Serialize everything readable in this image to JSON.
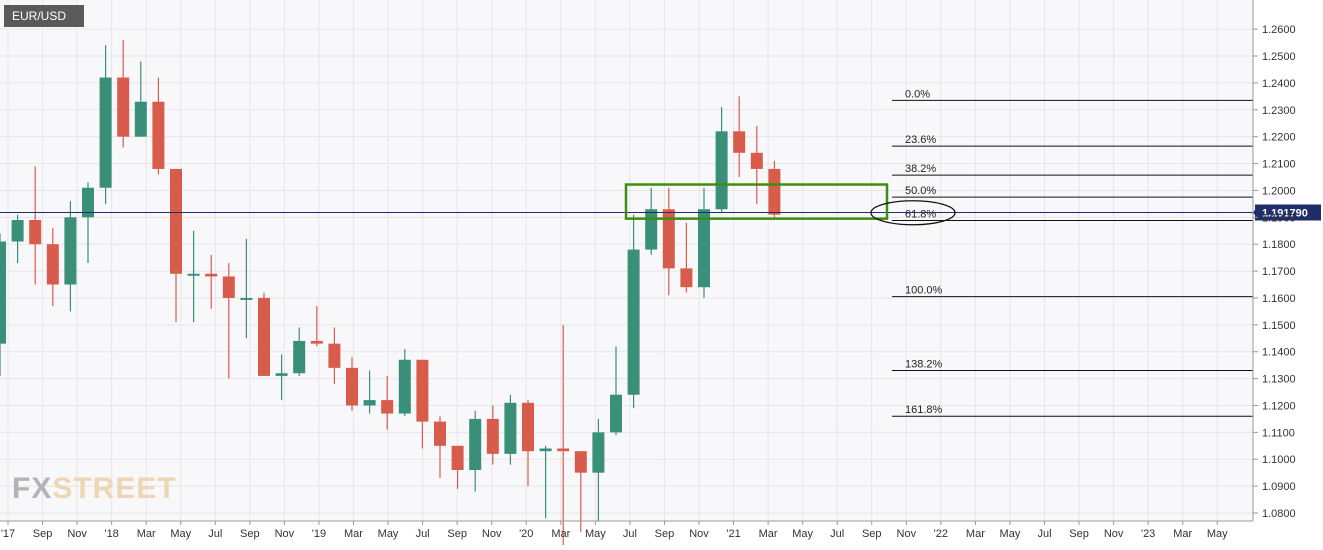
{
  "chart_data": {
    "type": "candlestick",
    "symbol": "EUR/USD",
    "timeframe": "monthly",
    "current_price": "1.191790",
    "ylim": [
      1.078,
      1.2635
    ],
    "y_ticks": [
      "1.2600",
      "1.2500",
      "1.2400",
      "1.2300",
      "1.2200",
      "1.2100",
      "1.2000",
      "1.1900",
      "1.1800",
      "1.1700",
      "1.1600",
      "1.1500",
      "1.1400",
      "1.1300",
      "1.1200",
      "1.1100",
      "1.1000",
      "1.0900",
      "1.0800"
    ],
    "x_ticks": [
      "'17",
      "Sep",
      "Nov",
      "'18",
      "Mar",
      "May",
      "Jul",
      "Sep",
      "Nov",
      "'19",
      "Mar",
      "May",
      "Jul",
      "Sep",
      "Nov",
      "'20",
      "Mar",
      "May",
      "Jul",
      "Sep",
      "Nov",
      "'21",
      "Mar",
      "May",
      "Jul",
      "Sep",
      "Nov",
      "'22",
      "Mar",
      "May",
      "Jul",
      "Sep",
      "Nov",
      "'23",
      "Mar",
      "May"
    ],
    "candles": [
      {
        "o": 1.143,
        "h": 1.184,
        "l": 1.131,
        "c": 1.181
      },
      {
        "o": 1.181,
        "h": 1.191,
        "l": 1.173,
        "c": 1.189
      },
      {
        "o": 1.189,
        "h": 1.209,
        "l": 1.165,
        "c": 1.18
      },
      {
        "o": 1.18,
        "h": 1.186,
        "l": 1.157,
        "c": 1.165
      },
      {
        "o": 1.165,
        "h": 1.196,
        "l": 1.155,
        "c": 1.19
      },
      {
        "o": 1.19,
        "h": 1.203,
        "l": 1.173,
        "c": 1.201
      },
      {
        "o": 1.201,
        "h": 1.254,
        "l": 1.195,
        "c": 1.242
      },
      {
        "o": 1.242,
        "h": 1.256,
        "l": 1.216,
        "c": 1.22
      },
      {
        "o": 1.22,
        "h": 1.248,
        "l": 1.22,
        "c": 1.233
      },
      {
        "o": 1.233,
        "h": 1.242,
        "l": 1.206,
        "c": 1.208
      },
      {
        "o": 1.208,
        "h": 1.208,
        "l": 1.151,
        "c": 1.169
      },
      {
        "o": 1.169,
        "h": 1.185,
        "l": 1.151,
        "c": 1.169
      },
      {
        "o": 1.169,
        "h": 1.176,
        "l": 1.156,
        "c": 1.168
      },
      {
        "o": 1.168,
        "h": 1.173,
        "l": 1.13,
        "c": 1.16
      },
      {
        "o": 1.16,
        "h": 1.182,
        "l": 1.145,
        "c": 1.16
      },
      {
        "o": 1.16,
        "h": 1.162,
        "l": 1.131,
        "c": 1.131
      },
      {
        "o": 1.131,
        "h": 1.139,
        "l": 1.122,
        "c": 1.132
      },
      {
        "o": 1.132,
        "h": 1.149,
        "l": 1.131,
        "c": 1.144
      },
      {
        "o": 1.144,
        "h": 1.157,
        "l": 1.142,
        "c": 1.143
      },
      {
        "o": 1.143,
        "h": 1.149,
        "l": 1.128,
        "c": 1.134
      },
      {
        "o": 1.134,
        "h": 1.138,
        "l": 1.118,
        "c": 1.12
      },
      {
        "o": 1.12,
        "h": 1.133,
        "l": 1.117,
        "c": 1.122
      },
      {
        "o": 1.122,
        "h": 1.131,
        "l": 1.111,
        "c": 1.117
      },
      {
        "o": 1.117,
        "h": 1.141,
        "l": 1.116,
        "c": 1.137
      },
      {
        "o": 1.137,
        "h": 1.137,
        "l": 1.104,
        "c": 1.114
      },
      {
        "o": 1.114,
        "h": 1.116,
        "l": 1.093,
        "c": 1.105
      },
      {
        "o": 1.105,
        "h": 1.104,
        "l": 1.089,
        "c": 1.096
      },
      {
        "o": 1.096,
        "h": 1.118,
        "l": 1.088,
        "c": 1.115
      },
      {
        "o": 1.115,
        "h": 1.12,
        "l": 1.098,
        "c": 1.102
      },
      {
        "o": 1.102,
        "h": 1.124,
        "l": 1.098,
        "c": 1.121
      },
      {
        "o": 1.121,
        "h": 1.122,
        "l": 1.09,
        "c": 1.103
      },
      {
        "o": 1.103,
        "h": 1.105,
        "l": 1.078,
        "c": 1.104
      },
      {
        "o": 1.104,
        "h": 1.15,
        "l": 1.064,
        "c": 1.103
      },
      {
        "o": 1.103,
        "h": 1.102,
        "l": 1.073,
        "c": 1.095
      },
      {
        "o": 1.095,
        "h": 1.115,
        "l": 1.077,
        "c": 1.11
      },
      {
        "o": 1.11,
        "h": 1.142,
        "l": 1.109,
        "c": 1.124
      },
      {
        "o": 1.124,
        "h": 1.191,
        "l": 1.119,
        "c": 1.178
      },
      {
        "o": 1.178,
        "h": 1.201,
        "l": 1.176,
        "c": 1.193
      },
      {
        "o": 1.193,
        "h": 1.201,
        "l": 1.161,
        "c": 1.171
      },
      {
        "o": 1.171,
        "h": 1.188,
        "l": 1.162,
        "c": 1.164
      },
      {
        "o": 1.164,
        "h": 1.201,
        "l": 1.16,
        "c": 1.193
      },
      {
        "o": 1.193,
        "h": 1.231,
        "l": 1.192,
        "c": 1.222
      },
      {
        "o": 1.222,
        "h": 1.235,
        "l": 1.205,
        "c": 1.214
      },
      {
        "o": 1.214,
        "h": 1.224,
        "l": 1.195,
        "c": 1.208
      },
      {
        "o": 1.208,
        "h": 1.211,
        "l": 1.19,
        "c": 1.191
      }
    ],
    "fib_levels": [
      {
        "label": "0.0%",
        "value": 1.2335
      },
      {
        "label": "23.6%",
        "value": 1.2165
      },
      {
        "label": "38.2%",
        "value": 1.2057
      },
      {
        "label": "50.0%",
        "value": 1.1975
      },
      {
        "label": "61.8%",
        "value": 1.1888
      },
      {
        "label": "100.0%",
        "value": 1.1605
      },
      {
        "label": "138.2%",
        "value": 1.133
      },
      {
        "label": "161.8%",
        "value": 1.116
      }
    ],
    "support_zone": {
      "top": 1.2022,
      "bottom": 1.1895
    },
    "colors": {
      "up": "#3a8f79",
      "down": "#d85c4c",
      "zone": "#3e8e0e",
      "price_line": "#1f2d6b",
      "price_tag": "#1f2d6b"
    }
  },
  "watermark": {
    "part1": "FX",
    "part2": "STREET"
  }
}
